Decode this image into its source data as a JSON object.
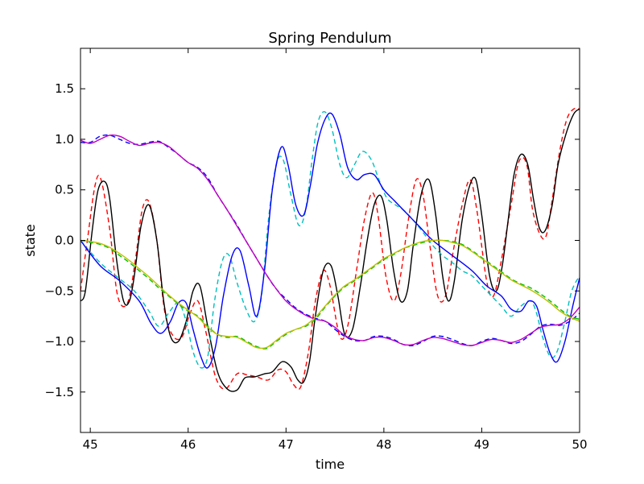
{
  "chart_data": {
    "type": "line",
    "title": "Spring Pendulum",
    "xlabel": "time",
    "ylabel": "state",
    "xlim": [
      44.9,
      50.0
    ],
    "ylim": [
      -1.9,
      1.9
    ],
    "xticks": [
      "45",
      "46",
      "47",
      "48",
      "49",
      "50"
    ],
    "yticks": [
      "1.5",
      "1.0",
      "0.5",
      "0.0",
      "−0.5",
      "−1.0",
      "−1.5"
    ],
    "xtick_values": [
      45,
      46,
      47,
      48,
      49,
      50
    ],
    "ytick_values": [
      1.5,
      1.0,
      0.5,
      0.0,
      -0.5,
      -1.0,
      -1.5
    ],
    "grid": false,
    "legend": "none",
    "series": [
      {
        "color": "#ff0000",
        "style": "dashed",
        "x": [
          44.9,
          44.97,
          45.05,
          45.11,
          45.2,
          45.28,
          45.38,
          45.46,
          45.53,
          45.6,
          45.68,
          45.76,
          45.85,
          45.94,
          46.02,
          46.1,
          46.18,
          46.28,
          46.38,
          46.5,
          46.6,
          46.7,
          46.82,
          46.92,
          47.0,
          47.08,
          47.15,
          47.23,
          47.3,
          47.38,
          47.45,
          47.55,
          47.63,
          47.72,
          47.8,
          47.88,
          47.94,
          48.02,
          48.1,
          48.17,
          48.25,
          48.33,
          48.4,
          48.47,
          48.55,
          48.63,
          48.71,
          48.8,
          48.88,
          48.95,
          49.05,
          49.12,
          49.2,
          49.3,
          49.38,
          49.46,
          49.52,
          49.6,
          49.66,
          49.72,
          49.8,
          49.87,
          49.94,
          50.0
        ],
        "y": [
          -0.5,
          0.0,
          0.55,
          0.6,
          0.1,
          -0.55,
          -0.62,
          -0.2,
          0.3,
          0.38,
          0.0,
          -0.7,
          -0.95,
          -0.95,
          -0.72,
          -0.6,
          -0.9,
          -1.35,
          -1.47,
          -1.32,
          -1.33,
          -1.35,
          -1.38,
          -1.28,
          -1.3,
          -1.43,
          -1.45,
          -1.1,
          -0.6,
          -0.3,
          -0.45,
          -0.95,
          -0.85,
          -0.3,
          0.2,
          0.47,
          0.25,
          -0.35,
          -0.6,
          -0.35,
          0.2,
          0.6,
          0.45,
          -0.05,
          -0.55,
          -0.55,
          -0.1,
          0.35,
          0.6,
          0.3,
          -0.4,
          -0.55,
          -0.2,
          0.35,
          0.78,
          0.75,
          0.3,
          0.05,
          0.05,
          0.4,
          0.9,
          1.2,
          1.3,
          1.3
        ]
      },
      {
        "color": "#000000",
        "style": "solid",
        "x": [
          44.9,
          44.95,
          45.02,
          45.08,
          45.15,
          45.2,
          45.27,
          45.34,
          45.4,
          45.45,
          45.52,
          45.6,
          45.68,
          45.75,
          45.82,
          45.9,
          45.98,
          46.05,
          46.12,
          46.2,
          46.3,
          46.4,
          46.5,
          46.58,
          46.68,
          46.78,
          46.86,
          46.96,
          47.05,
          47.12,
          47.18,
          47.24,
          47.3,
          47.38,
          47.46,
          47.53,
          47.6,
          47.68,
          47.76,
          47.83,
          47.9,
          47.97,
          48.03,
          48.1,
          48.17,
          48.24,
          48.3,
          48.38,
          48.46,
          48.53,
          48.6,
          48.66,
          48.72,
          48.8,
          48.88,
          48.94,
          49.0,
          49.08,
          49.15,
          49.21,
          49.27,
          49.33,
          49.4,
          49.47,
          49.53,
          49.59,
          49.65,
          49.72,
          49.78,
          49.86,
          49.94,
          50.0
        ],
        "y": [
          -0.6,
          -0.5,
          0.1,
          0.5,
          0.58,
          0.4,
          -0.2,
          -0.6,
          -0.6,
          -0.35,
          0.15,
          0.35,
          0.0,
          -0.6,
          -0.95,
          -1.0,
          -0.8,
          -0.5,
          -0.45,
          -0.85,
          -1.3,
          -1.47,
          -1.48,
          -1.36,
          -1.35,
          -1.32,
          -1.3,
          -1.2,
          -1.25,
          -1.38,
          -1.4,
          -1.2,
          -0.75,
          -0.3,
          -0.25,
          -0.55,
          -0.93,
          -0.88,
          -0.45,
          0.0,
          0.35,
          0.44,
          0.2,
          -0.3,
          -0.6,
          -0.5,
          -0.05,
          0.45,
          0.6,
          0.25,
          -0.35,
          -0.6,
          -0.4,
          0.2,
          0.55,
          0.6,
          0.25,
          -0.35,
          -0.5,
          -0.25,
          0.2,
          0.65,
          0.85,
          0.75,
          0.4,
          0.12,
          0.1,
          0.35,
          0.75,
          1.05,
          1.25,
          1.3
        ]
      },
      {
        "color": "#00bfbf",
        "style": "dashed",
        "x": [
          44.9,
          45.1,
          45.3,
          45.45,
          45.6,
          45.7,
          45.8,
          45.9,
          45.98,
          46.05,
          46.13,
          46.2,
          46.27,
          46.35,
          46.42,
          46.5,
          46.6,
          46.68,
          46.75,
          46.82,
          46.9,
          46.97,
          47.05,
          47.13,
          47.2,
          47.27,
          47.33,
          47.4,
          47.47,
          47.55,
          47.62,
          47.7,
          47.78,
          47.87,
          47.95,
          48.03,
          48.12,
          48.2,
          48.3,
          48.4,
          48.5,
          48.6,
          48.7,
          48.8,
          48.9,
          49.0,
          49.1,
          49.2,
          49.3,
          49.4,
          49.5,
          49.56,
          49.62,
          49.7,
          49.77,
          49.85,
          49.92,
          50.0
        ],
        "y": [
          0.0,
          -0.22,
          -0.38,
          -0.5,
          -0.7,
          -0.85,
          -0.72,
          -0.62,
          -0.8,
          -1.1,
          -1.26,
          -1.15,
          -0.6,
          -0.2,
          -0.15,
          -0.42,
          -0.7,
          -0.8,
          -0.55,
          0.2,
          0.75,
          0.8,
          0.45,
          0.15,
          0.3,
          0.82,
          1.18,
          1.27,
          1.1,
          0.75,
          0.62,
          0.75,
          0.88,
          0.8,
          0.6,
          0.42,
          0.35,
          0.3,
          0.2,
          0.08,
          -0.05,
          -0.15,
          -0.22,
          -0.3,
          -0.35,
          -0.45,
          -0.55,
          -0.65,
          -0.75,
          -0.65,
          -0.6,
          -0.72,
          -0.95,
          -1.15,
          -1.1,
          -0.8,
          -0.5,
          -0.35
        ]
      },
      {
        "color": "#0000ff",
        "style": "solid",
        "x": [
          44.9,
          45.1,
          45.3,
          45.5,
          45.62,
          45.72,
          45.82,
          45.9,
          45.98,
          46.05,
          46.13,
          46.2,
          46.28,
          46.36,
          46.45,
          46.53,
          46.62,
          46.7,
          46.78,
          46.86,
          46.95,
          47.02,
          47.1,
          47.18,
          47.25,
          47.32,
          47.4,
          47.47,
          47.55,
          47.63,
          47.72,
          47.8,
          47.9,
          48.0,
          48.1,
          48.2,
          48.35,
          48.5,
          48.7,
          48.9,
          49.05,
          49.2,
          49.3,
          49.4,
          49.48,
          49.56,
          49.63,
          49.7,
          49.77,
          49.85,
          49.93,
          50.0
        ],
        "y": [
          0.0,
          -0.25,
          -0.4,
          -0.6,
          -0.82,
          -0.92,
          -0.8,
          -0.62,
          -0.62,
          -0.88,
          -1.15,
          -1.26,
          -1.05,
          -0.55,
          -0.15,
          -0.1,
          -0.45,
          -0.75,
          -0.3,
          0.5,
          0.92,
          0.75,
          0.35,
          0.25,
          0.55,
          0.95,
          1.2,
          1.25,
          1.05,
          0.72,
          0.6,
          0.65,
          0.65,
          0.5,
          0.4,
          0.3,
          0.15,
          0.0,
          -0.15,
          -0.3,
          -0.45,
          -0.55,
          -0.68,
          -0.7,
          -0.6,
          -0.65,
          -0.9,
          -1.12,
          -1.2,
          -1.0,
          -0.65,
          -0.37
        ]
      },
      {
        "color": "#0000ff",
        "style": "dashed",
        "x": [
          44.9,
          45.0,
          45.1,
          45.2,
          45.3,
          45.4,
          45.5,
          45.6,
          45.7,
          45.8,
          45.9,
          46.0,
          46.1,
          46.2,
          46.3,
          46.4,
          46.5,
          46.6,
          46.7,
          46.8,
          46.9,
          47.0,
          47.1,
          47.2,
          47.3,
          47.4,
          47.5,
          47.6,
          47.7,
          47.8,
          47.9,
          48.0,
          48.1,
          48.2,
          48.3,
          48.4,
          48.5,
          48.6,
          48.7,
          48.8,
          48.9,
          49.0,
          49.1,
          49.2,
          49.3,
          49.4,
          49.5,
          49.6,
          49.7,
          49.8,
          49.9,
          50.0
        ],
        "y": [
          0.97,
          0.97,
          1.03,
          1.04,
          1.0,
          0.96,
          0.95,
          0.97,
          0.98,
          0.92,
          0.85,
          0.77,
          0.72,
          0.62,
          0.45,
          0.3,
          0.15,
          -0.02,
          -0.18,
          -0.34,
          -0.48,
          -0.58,
          -0.67,
          -0.73,
          -0.77,
          -0.8,
          -0.88,
          -0.95,
          -0.99,
          -0.99,
          -0.95,
          -0.95,
          -0.98,
          -1.03,
          -1.04,
          -1.0,
          -0.95,
          -0.95,
          -0.98,
          -1.02,
          -1.04,
          -1.0,
          -0.97,
          -0.99,
          -1.02,
          -1.0,
          -0.93,
          -0.85,
          -0.83,
          -0.84,
          -0.8,
          -0.72
        ]
      },
      {
        "color": "#bf00bf",
        "style": "solid",
        "x": [
          44.9,
          45.0,
          45.1,
          45.2,
          45.3,
          45.4,
          45.5,
          45.6,
          45.7,
          45.8,
          45.9,
          46.0,
          46.1,
          46.2,
          46.3,
          46.4,
          46.5,
          46.6,
          46.7,
          46.8,
          46.9,
          47.0,
          47.1,
          47.2,
          47.3,
          47.4,
          47.5,
          47.6,
          47.7,
          47.8,
          47.9,
          48.0,
          48.1,
          48.2,
          48.3,
          48.4,
          48.5,
          48.6,
          48.7,
          48.8,
          48.9,
          49.0,
          49.1,
          49.2,
          49.3,
          49.4,
          49.5,
          49.6,
          49.7,
          49.8,
          49.9,
          50.0
        ],
        "y": [
          0.99,
          0.96,
          1.0,
          1.04,
          1.03,
          0.98,
          0.94,
          0.96,
          0.97,
          0.93,
          0.85,
          0.77,
          0.71,
          0.6,
          0.45,
          0.3,
          0.14,
          -0.02,
          -0.18,
          -0.34,
          -0.48,
          -0.6,
          -0.68,
          -0.74,
          -0.78,
          -0.8,
          -0.86,
          -0.94,
          -0.98,
          -0.99,
          -0.96,
          -0.96,
          -0.99,
          -1.03,
          -1.03,
          -0.99,
          -0.96,
          -0.97,
          -1.0,
          -1.03,
          -1.04,
          -1.01,
          -0.98,
          -0.99,
          -1.01,
          -0.98,
          -0.92,
          -0.86,
          -0.84,
          -0.83,
          -0.77,
          -0.66
        ]
      },
      {
        "color": "#00bf00",
        "style": "dashed",
        "x": [
          44.9,
          45.0,
          45.1,
          45.2,
          45.3,
          45.4,
          45.5,
          45.6,
          45.7,
          45.8,
          45.9,
          46.0,
          46.1,
          46.2,
          46.3,
          46.4,
          46.5,
          46.6,
          46.7,
          46.8,
          46.9,
          47.0,
          47.1,
          47.2,
          47.3,
          47.4,
          47.5,
          47.6,
          47.7,
          47.8,
          47.9,
          48.0,
          48.1,
          48.2,
          48.3,
          48.4,
          48.5,
          48.6,
          48.7,
          48.8,
          48.9,
          49.0,
          49.1,
          49.2,
          49.3,
          49.4,
          49.5,
          49.6,
          49.7,
          49.8,
          49.9,
          50.0
        ],
        "y": [
          0.0,
          -0.02,
          -0.04,
          -0.08,
          -0.15,
          -0.22,
          -0.3,
          -0.38,
          -0.47,
          -0.55,
          -0.63,
          -0.7,
          -0.75,
          -0.85,
          -0.93,
          -0.96,
          -0.95,
          -1.0,
          -1.05,
          -1.07,
          -1.0,
          -0.93,
          -0.88,
          -0.85,
          -0.78,
          -0.66,
          -0.55,
          -0.46,
          -0.4,
          -0.33,
          -0.26,
          -0.19,
          -0.14,
          -0.08,
          -0.05,
          -0.02,
          0.0,
          0.0,
          -0.01,
          -0.04,
          -0.1,
          -0.17,
          -0.24,
          -0.31,
          -0.38,
          -0.43,
          -0.47,
          -0.53,
          -0.6,
          -0.68,
          -0.75,
          -0.78
        ]
      },
      {
        "color": "#bfbf00",
        "style": "solid",
        "x": [
          44.9,
          45.0,
          45.1,
          45.2,
          45.3,
          45.4,
          45.5,
          45.6,
          45.7,
          45.8,
          45.9,
          46.0,
          46.1,
          46.2,
          46.3,
          46.4,
          46.5,
          46.6,
          46.7,
          46.8,
          46.9,
          47.0,
          47.1,
          47.2,
          47.3,
          47.4,
          47.5,
          47.6,
          47.7,
          47.8,
          47.9,
          48.0,
          48.1,
          48.2,
          48.3,
          48.4,
          48.5,
          48.6,
          48.7,
          48.8,
          48.9,
          49.0,
          49.1,
          49.2,
          49.3,
          49.4,
          49.5,
          49.6,
          49.7,
          49.8,
          49.9,
          50.0
        ],
        "y": [
          0.0,
          -0.01,
          -0.03,
          -0.07,
          -0.13,
          -0.2,
          -0.28,
          -0.36,
          -0.45,
          -0.54,
          -0.62,
          -0.69,
          -0.76,
          -0.86,
          -0.93,
          -0.95,
          -0.96,
          -1.01,
          -1.06,
          -1.06,
          -0.99,
          -0.92,
          -0.88,
          -0.84,
          -0.76,
          -0.65,
          -0.54,
          -0.45,
          -0.39,
          -0.32,
          -0.25,
          -0.18,
          -0.13,
          -0.08,
          -0.04,
          -0.01,
          0.0,
          0.0,
          -0.02,
          -0.05,
          -0.11,
          -0.18,
          -0.25,
          -0.32,
          -0.39,
          -0.44,
          -0.49,
          -0.55,
          -0.62,
          -0.7,
          -0.76,
          -0.8
        ]
      }
    ]
  }
}
